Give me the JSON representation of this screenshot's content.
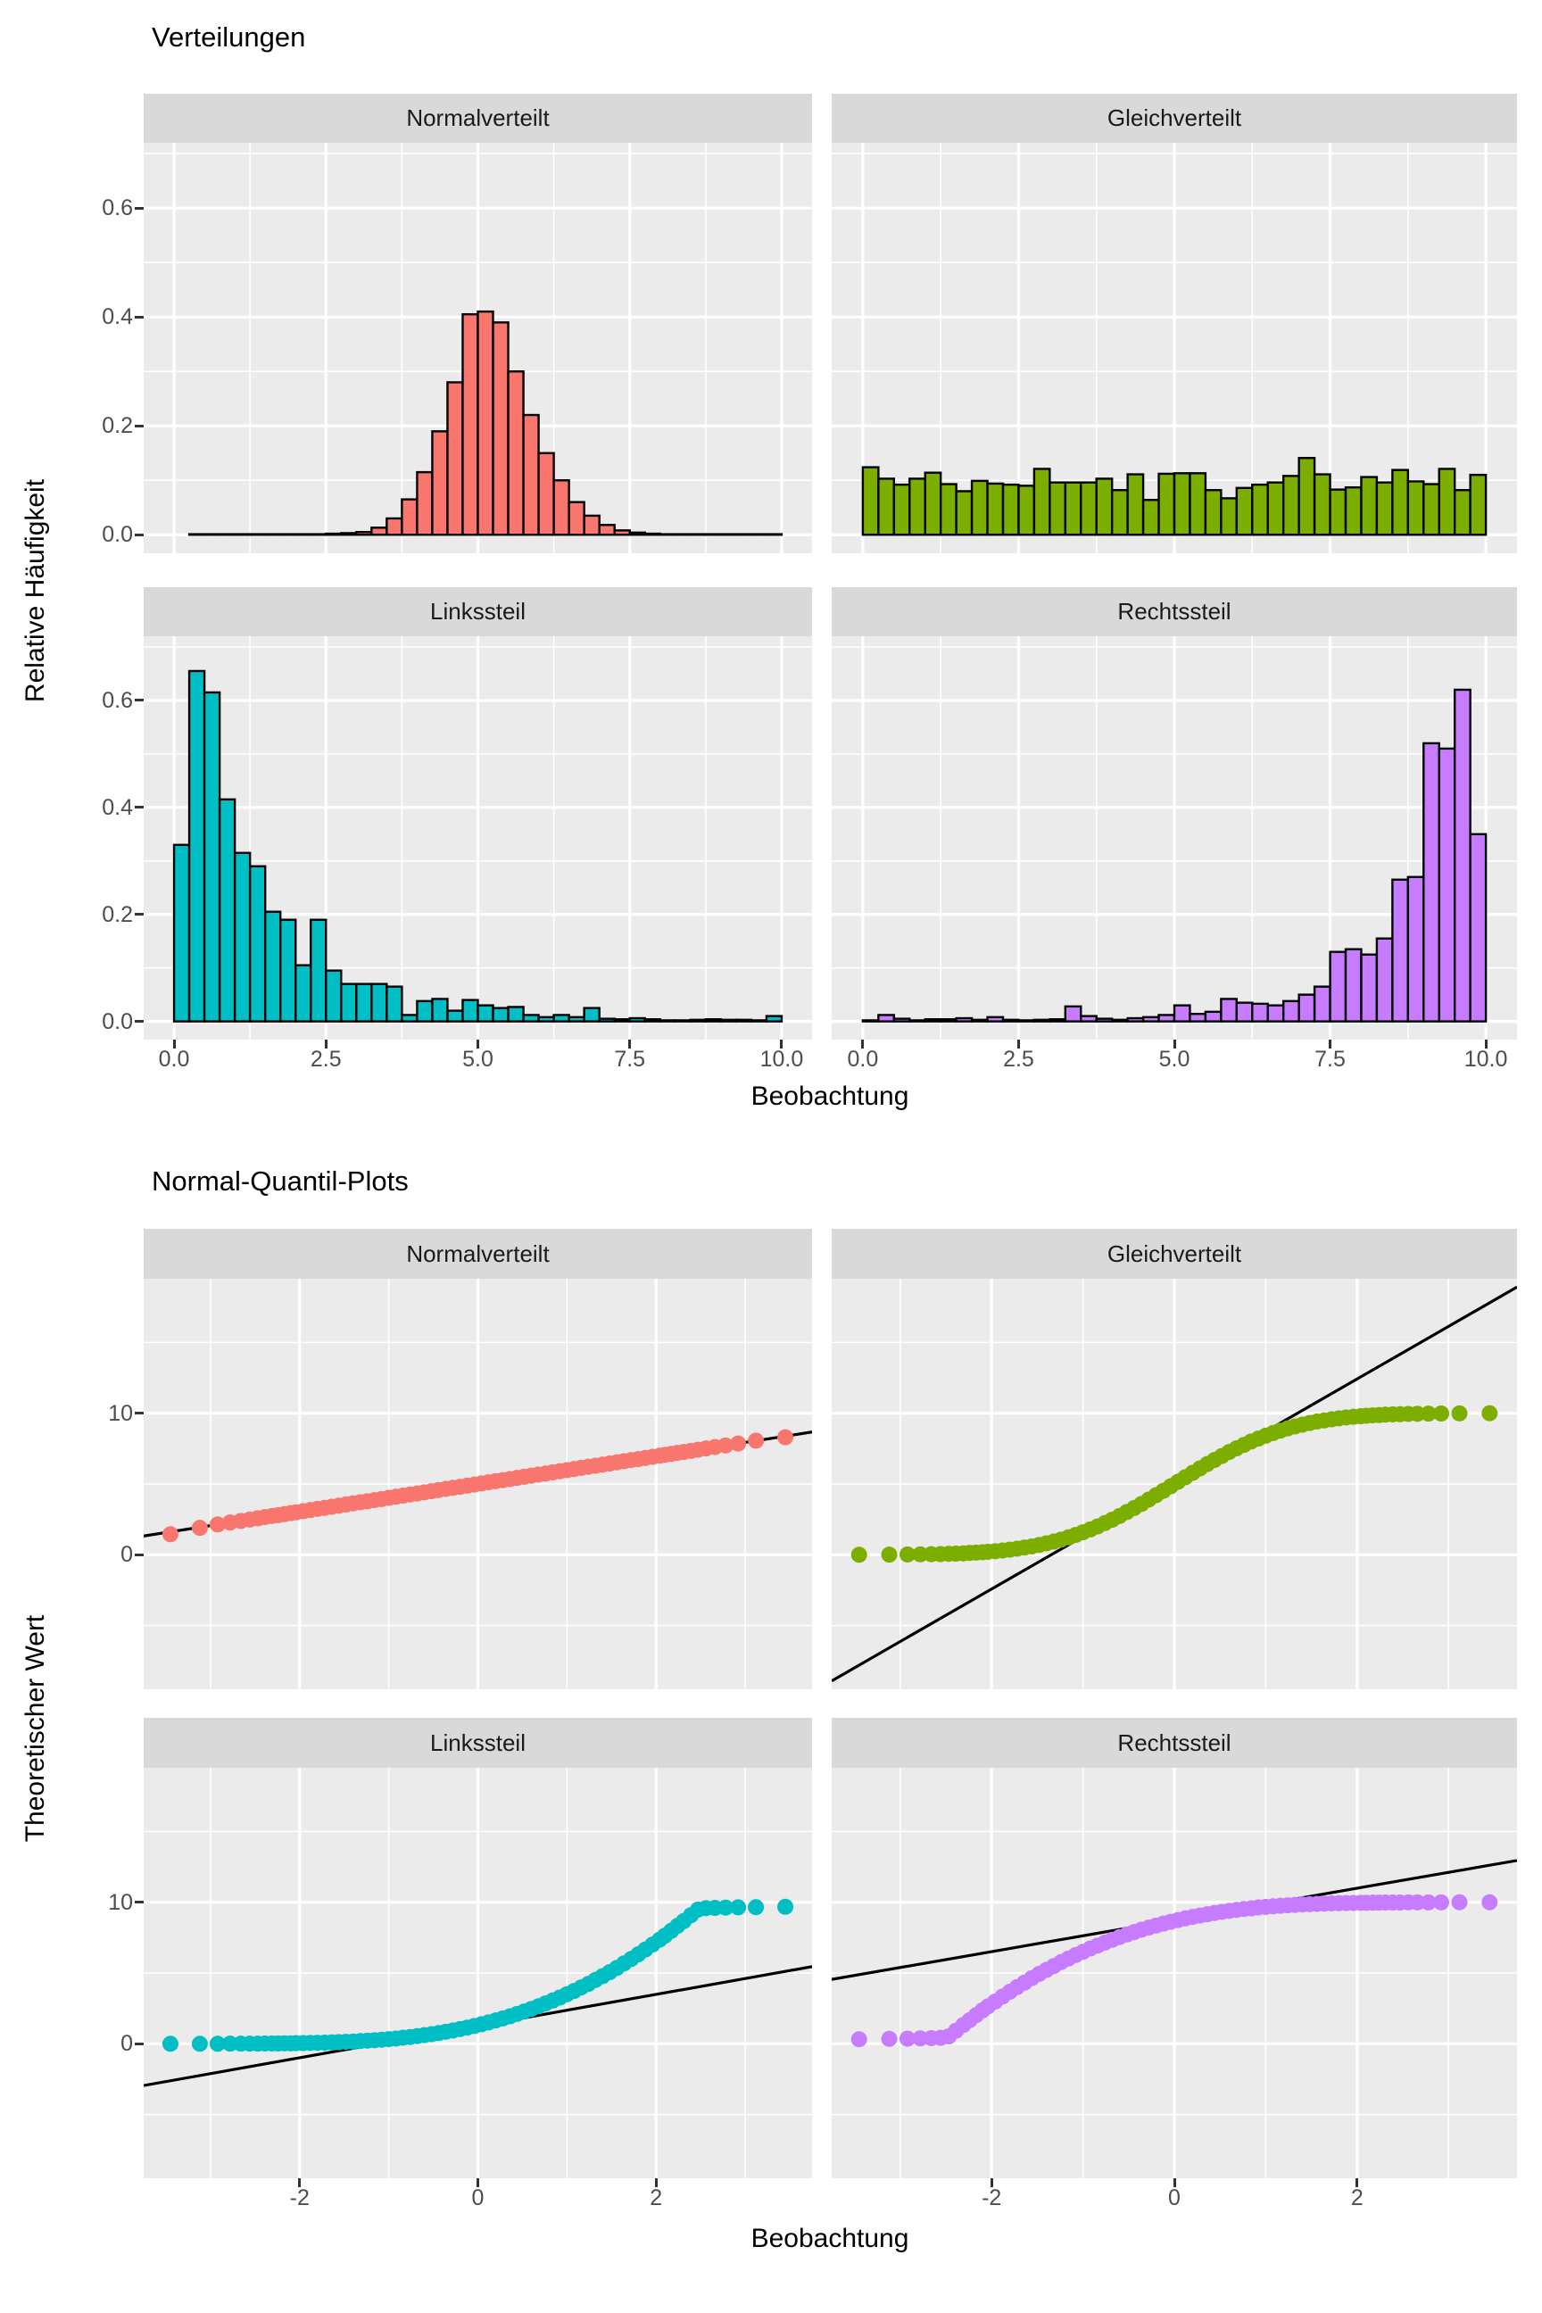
{
  "style": {
    "page_background": "#ffffff",
    "panel_background": "#ebebeb",
    "strip_background": "#d9d9d9",
    "grid_color": "#ffffff",
    "axis_text_color": "#4d4d4d",
    "tick_mark_color": "#333333",
    "bar_outline_color": "#000000",
    "reference_line_color": "#000000",
    "palette": {
      "normalverteilt": "#F8766D",
      "gleichverteilt": "#7CAE00",
      "linkssteil": "#00BFC4",
      "rechtssteil": "#C77CFF"
    }
  },
  "chart_data": [
    {
      "type": "bar",
      "subtype": "faceted-histogram-grid",
      "title": "Verteilungen",
      "xlabel": "Beobachtung",
      "ylabel": "Relative Häufigkeit",
      "legend": "none",
      "grid": "on",
      "x_domain": [
        -0.5,
        10.5
      ],
      "y_domain": [
        -0.034,
        0.72
      ],
      "x_ticks": [
        "0.0",
        "2.5",
        "5.0",
        "7.5",
        "10.0"
      ],
      "x_tick_values": [
        0,
        2.5,
        5,
        7.5,
        10
      ],
      "x_minor_values": [
        1.25,
        3.75,
        6.25,
        8.75
      ],
      "y_ticks": [
        "0.0",
        "0.2",
        "0.4",
        "0.6"
      ],
      "y_tick_values": [
        0,
        0.2,
        0.4,
        0.6
      ],
      "y_minor_values": [
        0.1,
        0.3,
        0.5,
        0.7
      ],
      "facets": [
        {
          "label": "Normalverteilt",
          "color": "#F8766D",
          "bin_start": 0,
          "bin_width": 0.25,
          "heights": [
            0,
            0.001,
            0.001,
            0.001,
            0.001,
            0.001,
            0.001,
            0.001,
            0.001,
            0.001,
            0.002,
            0.003,
            0.005,
            0.013,
            0.03,
            0.065,
            0.115,
            0.19,
            0.28,
            0.405,
            0.41,
            0.39,
            0.3,
            0.22,
            0.15,
            0.1,
            0.06,
            0.035,
            0.018,
            0.008,
            0.004,
            0.002,
            0.001,
            0.001,
            0.001,
            0.001,
            0.001,
            0.001,
            0.001,
            0.001
          ]
        },
        {
          "label": "Gleichverteilt",
          "color": "#7CAE00",
          "bin_start": 0,
          "bin_width": 0.25,
          "heights": [
            0.124,
            0.103,
            0.092,
            0.103,
            0.114,
            0.093,
            0.08,
            0.099,
            0.094,
            0.092,
            0.09,
            0.121,
            0.096,
            0.096,
            0.096,
            0.103,
            0.082,
            0.111,
            0.064,
            0.112,
            0.113,
            0.113,
            0.082,
            0.067,
            0.086,
            0.092,
            0.096,
            0.108,
            0.141,
            0.111,
            0.083,
            0.087,
            0.106,
            0.096,
            0.119,
            0.098,
            0.093,
            0.121,
            0.082,
            0.11
          ]
        },
        {
          "label": "Linkssteil",
          "color": "#00BFC4",
          "bin_start": 0,
          "bin_width": 0.25,
          "heights": [
            0.33,
            0.655,
            0.615,
            0.415,
            0.315,
            0.29,
            0.205,
            0.19,
            0.105,
            0.19,
            0.095,
            0.07,
            0.07,
            0.07,
            0.065,
            0.012,
            0.038,
            0.042,
            0.02,
            0.04,
            0.03,
            0.025,
            0.027,
            0.012,
            0.008,
            0.012,
            0.008,
            0.025,
            0.005,
            0.004,
            0.006,
            0.004,
            0.002,
            0.002,
            0.003,
            0.004,
            0.003,
            0.003,
            0.002,
            0.01
          ]
        },
        {
          "label": "Rechtssteil",
          "color": "#C77CFF",
          "bin_start": 0,
          "bin_width": 0.25,
          "heights": [
            0.002,
            0.012,
            0.005,
            0.002,
            0.004,
            0.004,
            0.006,
            0.003,
            0.008,
            0.003,
            0.002,
            0.003,
            0.004,
            0.028,
            0.01,
            0.005,
            0.003,
            0.006,
            0.008,
            0.012,
            0.03,
            0.014,
            0.018,
            0.042,
            0.035,
            0.033,
            0.03,
            0.038,
            0.05,
            0.065,
            0.13,
            0.135,
            0.125,
            0.155,
            0.265,
            0.27,
            0.52,
            0.51,
            0.62,
            0.35
          ]
        }
      ]
    },
    {
      "type": "scatter",
      "subtype": "faceted-qq-grid",
      "title": "Normal-Quantil-Plots",
      "xlabel": "Beobachtung",
      "ylabel": "Theoretischer Wert",
      "legend": "none",
      "grid": "on",
      "x_domain": [
        -3.75,
        3.75
      ],
      "y_domain": [
        -9.5,
        19.5
      ],
      "x_ticks": [
        "-2",
        "0",
        "2"
      ],
      "x_tick_values": [
        -2,
        0,
        2
      ],
      "x_minor_values": [
        -3,
        -1,
        1,
        3
      ],
      "y_ticks": [
        "0",
        "10"
      ],
      "y_tick_values": [
        0,
        10
      ],
      "y_minor_values": [
        -5,
        5,
        15
      ],
      "qq_x": [
        -3.45,
        -3.12,
        -2.92,
        -2.78,
        -2.66,
        -2.56,
        -2.47,
        -2.39,
        -2.31,
        -2.24,
        -2.17,
        -2.1,
        -2.04,
        -1.96,
        -1.88,
        -1.8,
        -1.72,
        -1.64,
        -1.56,
        -1.48,
        -1.4,
        -1.32,
        -1.24,
        -1.16,
        -1.08,
        -1,
        -0.92,
        -0.84,
        -0.76,
        -0.68,
        -0.6,
        -0.52,
        -0.44,
        -0.36,
        -0.28,
        -0.2,
        -0.12,
        -0.04,
        0.04,
        0.12,
        0.2,
        0.28,
        0.36,
        0.44,
        0.52,
        0.6,
        0.68,
        0.76,
        0.84,
        0.92,
        1,
        1.08,
        1.16,
        1.24,
        1.32,
        1.4,
        1.48,
        1.56,
        1.64,
        1.72,
        1.8,
        1.88,
        1.96,
        2.04,
        2.1,
        2.17,
        2.24,
        2.31,
        2.39,
        2.47,
        2.56,
        2.66,
        2.78,
        2.92,
        3.12,
        3.45
      ],
      "facets": [
        {
          "label": "Normalverteilt",
          "color": "#F8766D",
          "reference_line": {
            "intercept": 5,
            "slope": 0.98
          },
          "y": [
            1.45,
            1.9,
            2.14,
            2.28,
            2.39,
            2.49,
            2.58,
            2.66,
            2.74,
            2.8,
            2.87,
            2.94,
            3.0,
            3.08,
            3.16,
            3.24,
            3.31,
            3.39,
            3.47,
            3.55,
            3.63,
            3.71,
            3.78,
            3.86,
            3.94,
            4.02,
            4.1,
            4.18,
            4.26,
            4.33,
            4.41,
            4.49,
            4.57,
            4.65,
            4.73,
            4.8,
            4.88,
            4.96,
            5.04,
            5.12,
            5.2,
            5.27,
            5.35,
            5.43,
            5.51,
            5.59,
            5.67,
            5.74,
            5.82,
            5.9,
            5.98,
            6.06,
            6.14,
            6.22,
            6.29,
            6.37,
            6.45,
            6.53,
            6.61,
            6.69,
            6.76,
            6.84,
            6.92,
            7.0,
            7.06,
            7.13,
            7.2,
            7.26,
            7.34,
            7.42,
            7.51,
            7.61,
            7.72,
            7.86,
            8.06,
            8.3
          ]
        },
        {
          "label": "Gleichverteilt",
          "color": "#7CAE00",
          "reference_line": {
            "intercept": 5,
            "slope": 3.71
          },
          "y": [
            0.0,
            0.01,
            0.02,
            0.03,
            0.04,
            0.05,
            0.07,
            0.08,
            0.1,
            0.13,
            0.15,
            0.18,
            0.21,
            0.25,
            0.3,
            0.36,
            0.43,
            0.51,
            0.59,
            0.69,
            0.81,
            0.93,
            1.07,
            1.23,
            1.4,
            1.59,
            1.79,
            2.0,
            2.24,
            2.48,
            2.74,
            3.02,
            3.3,
            3.59,
            3.9,
            4.21,
            4.52,
            4.84,
            5.16,
            5.48,
            5.79,
            6.1,
            6.41,
            6.7,
            6.98,
            7.26,
            7.52,
            7.76,
            8.0,
            8.21,
            8.41,
            8.6,
            8.77,
            8.93,
            9.07,
            9.19,
            9.31,
            9.41,
            9.49,
            9.57,
            9.64,
            9.7,
            9.75,
            9.79,
            9.82,
            9.85,
            9.87,
            9.9,
            9.92,
            9.93,
            9.95,
            9.96,
            9.97,
            9.98,
            9.99,
            10.0
          ]
        },
        {
          "label": "Linkssteil",
          "color": "#00BFC4",
          "reference_line": {
            "intercept": 1.25,
            "slope": 1.12
          },
          "y": [
            0.0,
            0.0,
            0.0,
            0.01,
            0.01,
            0.01,
            0.01,
            0.02,
            0.02,
            0.02,
            0.03,
            0.03,
            0.04,
            0.05,
            0.06,
            0.07,
            0.08,
            0.1,
            0.12,
            0.14,
            0.16,
            0.19,
            0.22,
            0.25,
            0.29,
            0.33,
            0.37,
            0.43,
            0.48,
            0.54,
            0.61,
            0.68,
            0.76,
            0.85,
            0.94,
            1.04,
            1.14,
            1.26,
            1.38,
            1.51,
            1.65,
            1.79,
            1.94,
            2.11,
            2.28,
            2.46,
            2.65,
            2.85,
            3.06,
            3.27,
            3.5,
            3.73,
            3.98,
            4.23,
            4.51,
            4.78,
            5.06,
            5.36,
            5.68,
            5.99,
            6.32,
            6.66,
            7.01,
            7.36,
            7.64,
            7.98,
            8.33,
            8.67,
            9.08,
            9.48,
            9.58,
            9.6,
            9.62,
            9.64,
            9.65,
            9.68
          ]
        },
        {
          "label": "Rechtssteil",
          "color": "#C77CFF",
          "reference_line": {
            "intercept": 8.75,
            "slope": 1.12
          },
          "y": [
            0.32,
            0.35,
            0.36,
            0.38,
            0.4,
            0.42,
            0.52,
            0.92,
            1.33,
            1.67,
            2.02,
            2.36,
            2.64,
            2.99,
            3.34,
            3.68,
            4.01,
            4.32,
            4.64,
            4.94,
            5.22,
            5.49,
            5.77,
            6.02,
            6.27,
            6.5,
            6.73,
            6.94,
            7.15,
            7.35,
            7.54,
            7.72,
            7.89,
            8.06,
            8.21,
            8.35,
            8.49,
            8.62,
            8.74,
            8.86,
            8.96,
            9.06,
            9.15,
            9.24,
            9.32,
            9.39,
            9.46,
            9.52,
            9.57,
            9.63,
            9.67,
            9.71,
            9.75,
            9.78,
            9.81,
            9.84,
            9.86,
            9.88,
            9.9,
            9.92,
            9.93,
            9.94,
            9.95,
            9.96,
            9.96,
            9.97,
            9.97,
            9.98,
            9.98,
            9.98,
            9.99,
            9.99,
            9.99,
            9.99,
            10.0,
            10.0
          ]
        }
      ]
    }
  ]
}
